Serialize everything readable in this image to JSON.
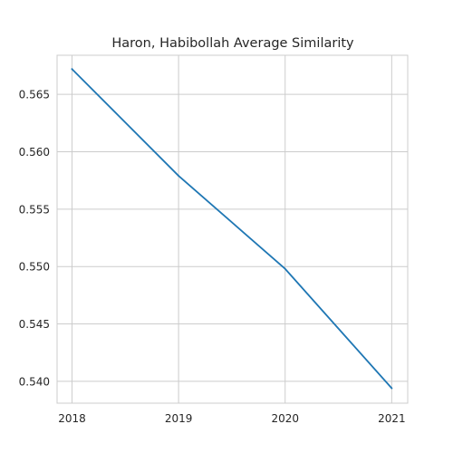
{
  "chart_data": {
    "type": "line",
    "title": "Haron, Habibollah Average Similarity",
    "xlabel": "",
    "ylabel": "",
    "x": [
      2018,
      2019,
      2020,
      2021
    ],
    "x_tick_labels": [
      "2018",
      "2019",
      "2020",
      "2021"
    ],
    "y_ticks": [
      0.54,
      0.545,
      0.55,
      0.555,
      0.56,
      0.565
    ],
    "y_tick_labels": [
      "0.540",
      "0.545",
      "0.550",
      "0.555",
      "0.560",
      "0.565"
    ],
    "xlim": [
      2017.86,
      2021.15
    ],
    "ylim": [
      0.5381,
      0.5684
    ],
    "grid": true,
    "series": [
      {
        "name": "",
        "color": "#1f77b4",
        "values": [
          0.5672,
          0.5579,
          0.5498,
          0.5394
        ]
      }
    ]
  }
}
